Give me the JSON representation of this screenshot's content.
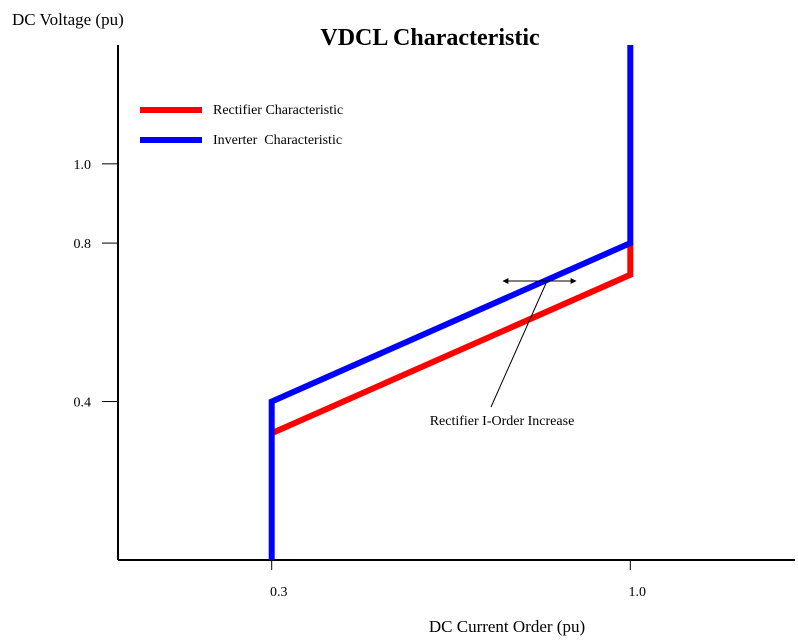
{
  "chart_data": {
    "type": "line",
    "title": "VDCL Characteristic",
    "xlabel": "DC Current Order (pu)",
    "ylabel": "DC Voltage (pu)",
    "xlim": [
      0,
      1.3
    ],
    "ylim": [
      0,
      1.3
    ],
    "x_ticks": [
      {
        "value": 0.3,
        "label": "0.3"
      },
      {
        "value": 1.0,
        "label": "1.0"
      }
    ],
    "y_ticks": [
      {
        "value": 0.4,
        "label": "0.4"
      },
      {
        "value": 0.8,
        "label": "0.8"
      },
      {
        "value": 1.0,
        "label": "1.0"
      }
    ],
    "grid": false,
    "legend_position": "top-left",
    "series": [
      {
        "name": "Rectifier Characteristic",
        "color": "#ff0000",
        "points": [
          [
            0.3,
            0.32
          ],
          [
            1.0,
            0.72
          ],
          [
            1.0,
            0.8
          ]
        ]
      },
      {
        "name": "Inverter  Characteristic",
        "color": "#0000ff",
        "points": [
          [
            0.3,
            0.0
          ],
          [
            0.3,
            0.4
          ],
          [
            1.0,
            0.8
          ],
          [
            1.0,
            1.3
          ]
        ]
      }
    ],
    "annotations": [
      {
        "text": "Rectifier I-Order Increase",
        "arrow": "double-headed horizontal, pointing to the gap between the characteristics"
      }
    ]
  }
}
